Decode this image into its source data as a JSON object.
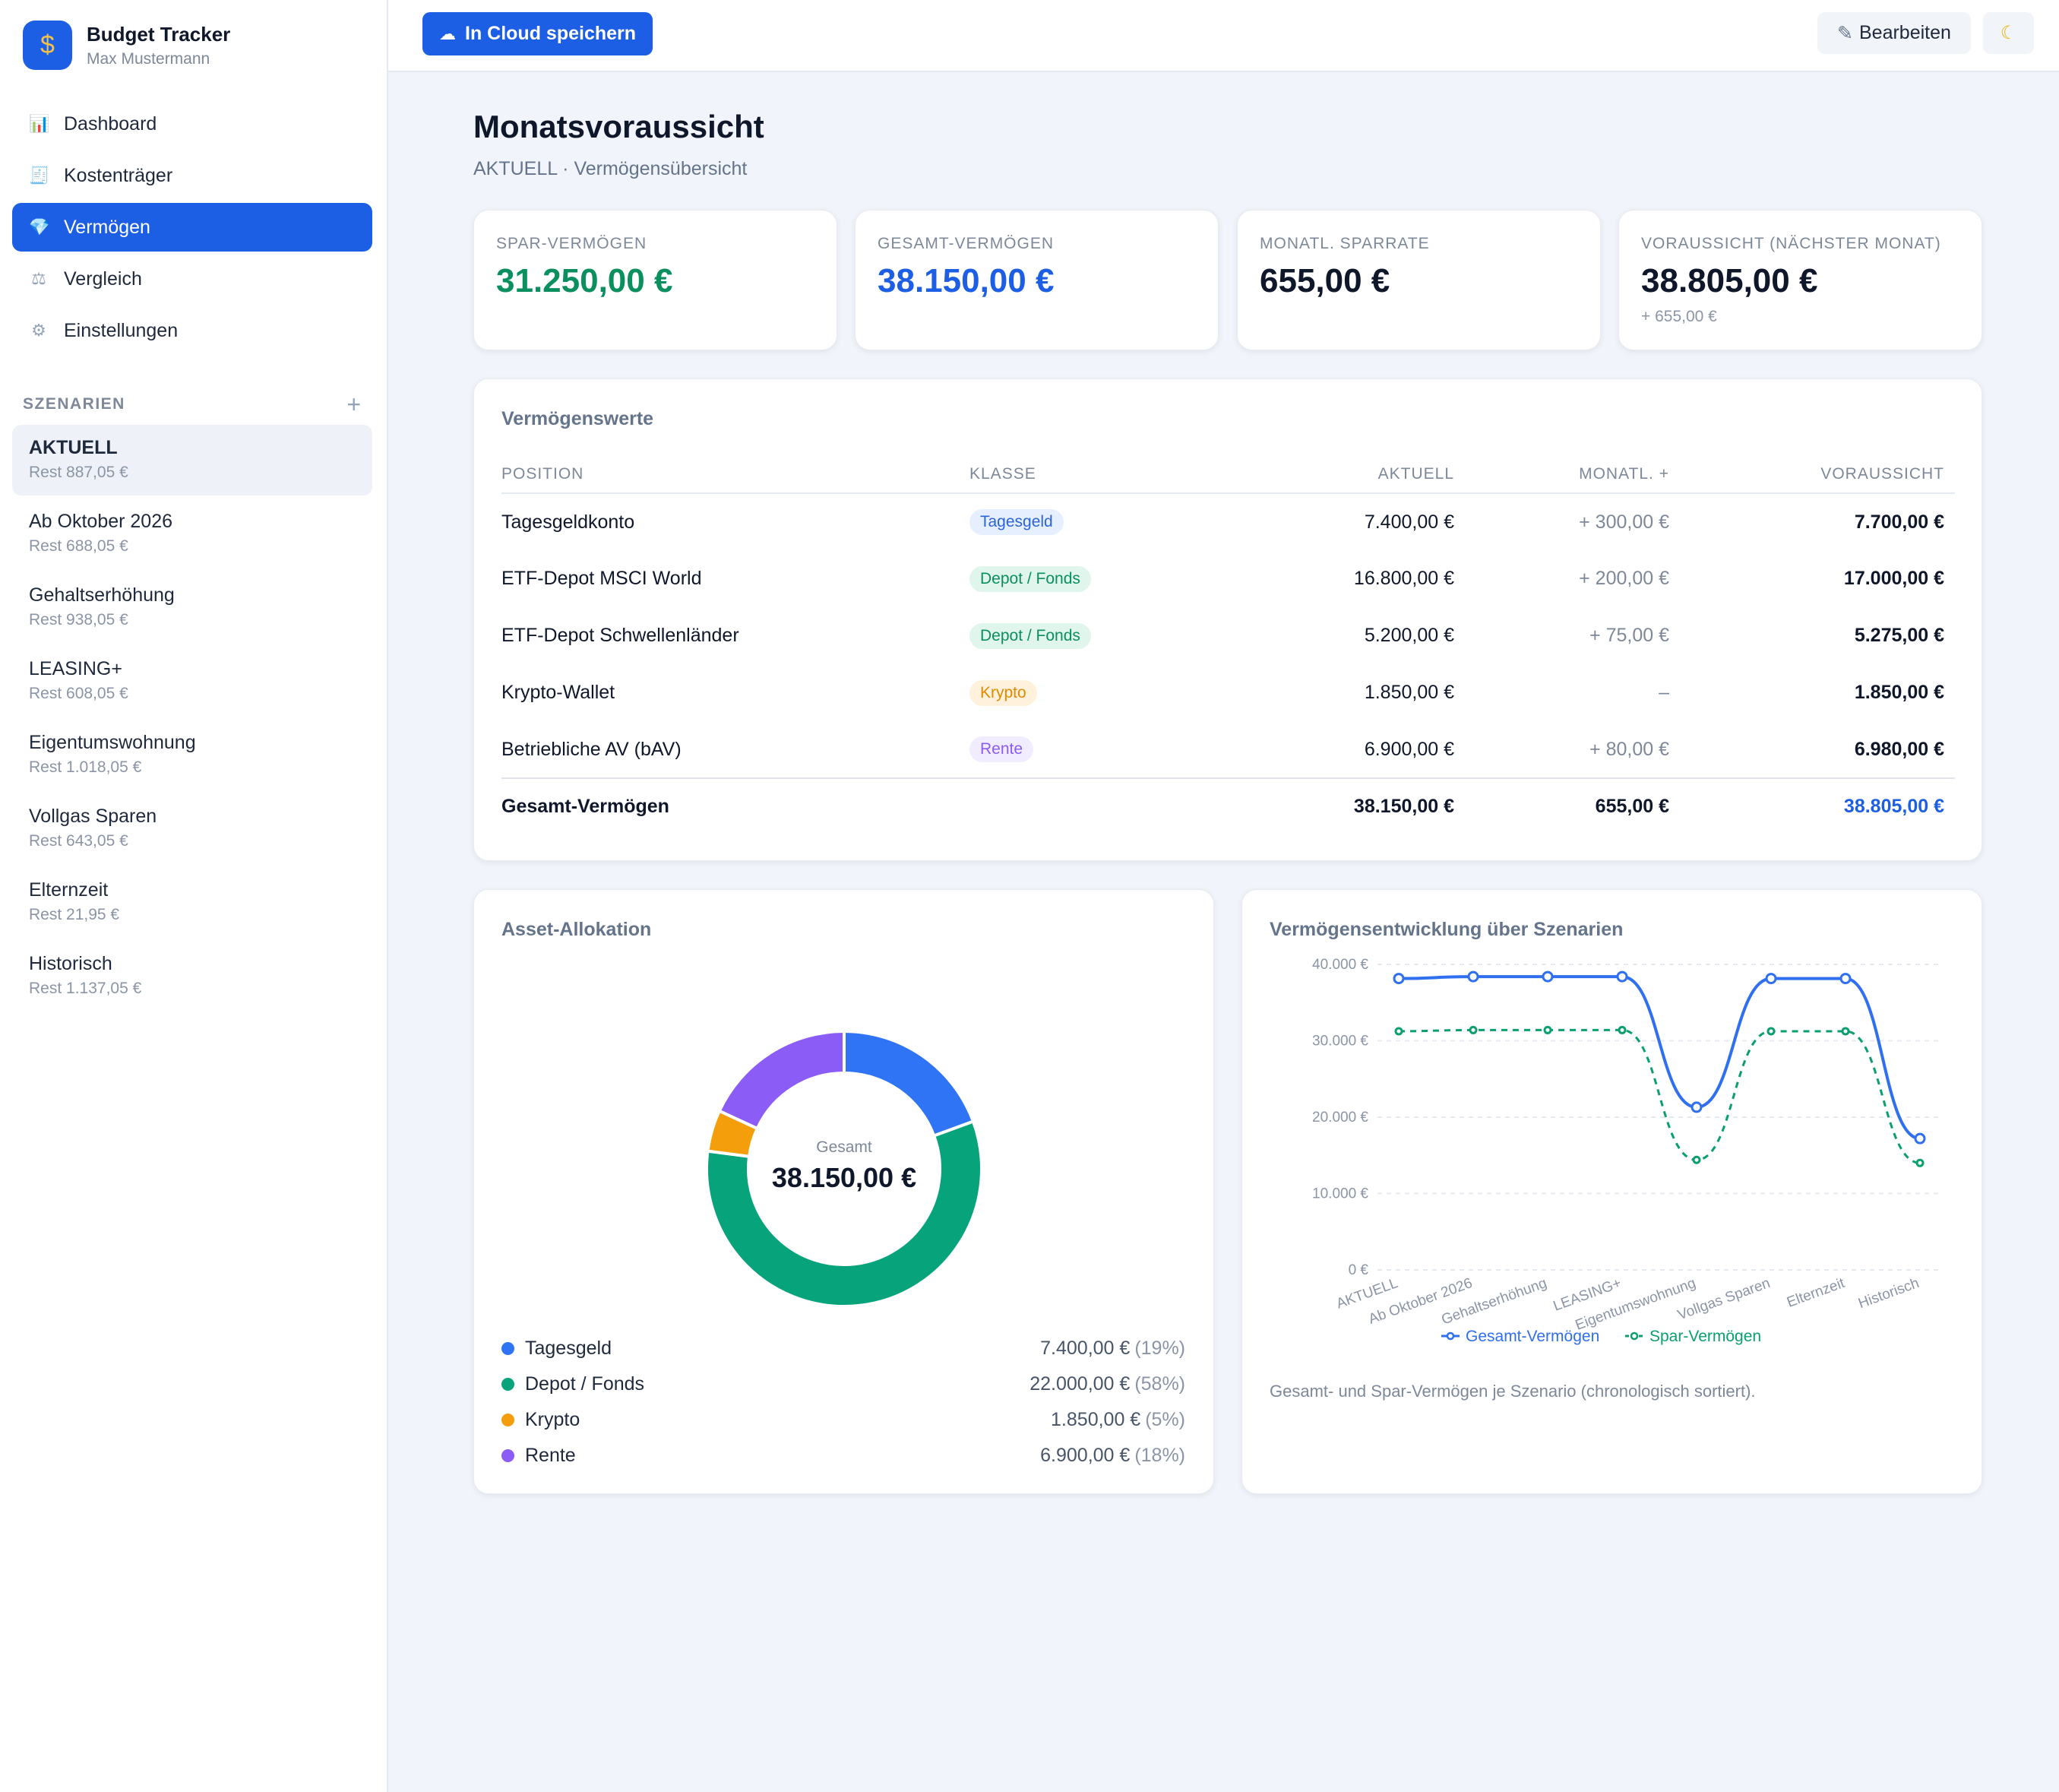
{
  "app": {
    "title": "Budget Tracker",
    "user": "Max Mustermann",
    "logo_icon": "money-bag-icon"
  },
  "nav": [
    {
      "label": "Dashboard",
      "icon": "📊",
      "active": false
    },
    {
      "label": "Kostenträger",
      "icon": "🧾",
      "active": false
    },
    {
      "label": "Vermögen",
      "icon": "💎",
      "active": true
    },
    {
      "label": "Vergleich",
      "icon": "⚖",
      "active": false
    },
    {
      "label": "Einstellungen",
      "icon": "⚙",
      "active": false
    }
  ],
  "scenarios": {
    "title": "SZENARIEN",
    "add": "+",
    "items": [
      {
        "name": "AKTUELL",
        "rest": "Rest 887,05 €",
        "active": true
      },
      {
        "name": "Ab Oktober 2026",
        "rest": "Rest 688,05 €"
      },
      {
        "name": "Gehaltserhöhung",
        "rest": "Rest 938,05 €"
      },
      {
        "name": "LEASING+",
        "rest": "Rest 608,05 €"
      },
      {
        "name": "Eigentumswohnung",
        "rest": "Rest 1.018,05 €"
      },
      {
        "name": "Vollgas Sparen",
        "rest": "Rest 643,05 €"
      },
      {
        "name": "Elternzeit",
        "rest": "Rest 21,95 €"
      },
      {
        "name": "Historisch",
        "rest": "Rest 1.137,05 €"
      }
    ]
  },
  "toolbar": {
    "cloud_label": "In Cloud speichern",
    "cloud_icon": "☁",
    "edit_label": "Bearbeiten",
    "edit_icon": "✎",
    "theme_icon": "☾"
  },
  "page": {
    "title": "Monatsvoraussicht",
    "subtitle": "AKTUELL · Vermögensübersicht"
  },
  "kpis": [
    {
      "label": "SPAR-VERMÖGEN",
      "value": "31.250,00 €",
      "color": "#0a8f5f"
    },
    {
      "label": "GESAMT-VERMÖGEN",
      "value": "38.150,00 €",
      "color": "#1d5fe4"
    },
    {
      "label": "MONATL. SPARRATE",
      "value": "655,00 €",
      "color": "#0f172a"
    },
    {
      "label": "VORAUSSICHT (NÄCHSTER MONAT)",
      "value": "38.805,00 €",
      "color": "#0f172a",
      "sub": "+ 655,00 €"
    }
  ],
  "assets": {
    "title": "Vermögenswerte",
    "columns": [
      "POSITION",
      "KLASSE",
      "AKTUELL",
      "MONATL. +",
      "VORAUSSICHT"
    ],
    "rows": [
      {
        "position": "Tagesgeldkonto",
        "klasse": "Tagesgeld",
        "aktuell": "7.400,00 €",
        "monatl": "+ 300,00 €",
        "voraussicht": "7.700,00 €"
      },
      {
        "position": "ETF-Depot MSCI World",
        "klasse": "Depot / Fonds",
        "aktuell": "16.800,00 €",
        "monatl": "+ 200,00 €",
        "voraussicht": "17.000,00 €"
      },
      {
        "position": "ETF-Depot Schwellenländer",
        "klasse": "Depot / Fonds",
        "aktuell": "5.200,00 €",
        "monatl": "+ 75,00 €",
        "voraussicht": "5.275,00 €"
      },
      {
        "position": "Krypto-Wallet",
        "klasse": "Krypto",
        "aktuell": "1.850,00 €",
        "monatl": "–",
        "voraussicht": "1.850,00 €"
      },
      {
        "position": "Betriebliche AV (bAV)",
        "klasse": "Rente",
        "aktuell": "6.900,00 €",
        "monatl": "+ 80,00 €",
        "voraussicht": "6.980,00 €"
      }
    ],
    "total": {
      "position": "Gesamt-Vermögen",
      "aktuell": "38.150,00 €",
      "monatl": "655,00 €",
      "voraussicht": "38.805,00 €"
    }
  },
  "badge_colors": {
    "Tagesgeld": {
      "bg": "#e6efff",
      "fg": "#2a64d8"
    },
    "Depot / Fonds": {
      "bg": "#e0f5ec",
      "fg": "#0a8f5f"
    },
    "Krypto": {
      "bg": "#fff1dc",
      "fg": "#e08a00"
    },
    "Rente": {
      "bg": "#f1ecff",
      "fg": "#8b5cf6"
    }
  },
  "allocation": {
    "title": "Asset-Allokation",
    "center_label": "Gesamt",
    "center_value": "38.150,00 €",
    "legend": [
      {
        "label": "Tagesgeld",
        "value": "7.400,00 €",
        "pct": "(19%)",
        "color": "#2f74f5"
      },
      {
        "label": "Depot / Fonds",
        "value": "22.000,00 €",
        "pct": "(58%)",
        "color": "#07a47c"
      },
      {
        "label": "Krypto",
        "value": "1.850,00 €",
        "pct": "(5%)",
        "color": "#f59e0b"
      },
      {
        "label": "Rente",
        "value": "6.900,00 €",
        "pct": "(18%)",
        "color": "#8b5cf6"
      }
    ]
  },
  "trend": {
    "title": "Vermögensentwicklung über Szenarien",
    "note": "Gesamt- und Spar-Vermögen je Szenario (chronologisch sortiert)."
  },
  "chart_data": [
    {
      "type": "pie",
      "title": "Asset-Allokation",
      "labels": [
        "Tagesgeld",
        "Depot / Fonds",
        "Krypto",
        "Rente"
      ],
      "values": [
        7400,
        22000,
        1850,
        6900
      ],
      "colors": [
        "#2f74f5",
        "#07a47c",
        "#f59e0b",
        "#8b5cf6"
      ]
    },
    {
      "type": "line",
      "title": "Vermögensentwicklung über Szenarien",
      "categories": [
        "AKTUELL",
        "Ab Oktober 2026",
        "Gehaltserhöhung",
        "LEASING+",
        "Eigentumswohnung",
        "Vollgas Sparen",
        "Elternzeit",
        "Historisch"
      ],
      "series": [
        {
          "name": "Gesamt-Vermögen",
          "values": [
            38150,
            38400,
            38400,
            38400,
            21300,
            38150,
            38150,
            17200
          ],
          "color": "#2f6ff0",
          "style": "solid"
        },
        {
          "name": "Spar-Vermögen",
          "values": [
            31250,
            31400,
            31400,
            31400,
            14400,
            31250,
            31250,
            14000
          ],
          "color": "#0a9f6e",
          "style": "dashed"
        }
      ],
      "yticks": [
        "0 €",
        "10.000 €",
        "20.000 €",
        "30.000 €",
        "40.000 €"
      ],
      "ylim": [
        0,
        40000
      ],
      "grid": true,
      "legend": "bottom"
    }
  ]
}
